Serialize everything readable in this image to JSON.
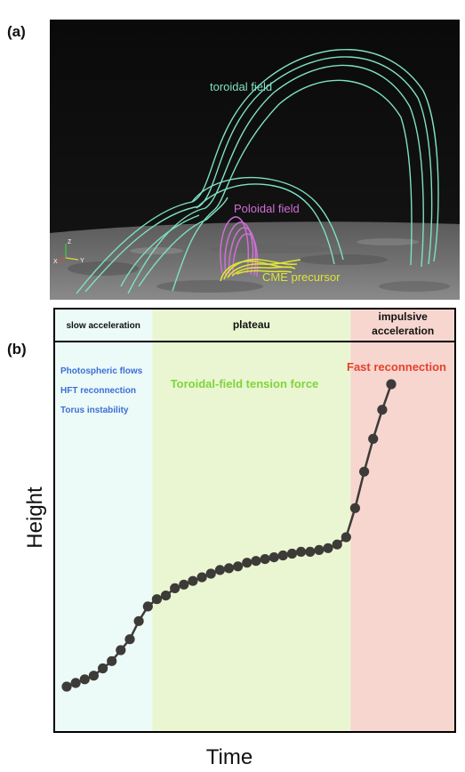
{
  "labels": {
    "panel_a": "(a)",
    "panel_b": "(b)"
  },
  "simulation": {
    "toroidal_label": "toroidal field",
    "poloidal_label": "Poloidal field",
    "cme_label": "CME precursor",
    "axes": {
      "z": "Z",
      "x": "X",
      "y": "Y"
    },
    "colors": {
      "toroidal": "#7fe0c3",
      "poloidal": "#cf6fd6",
      "cme": "#dde33a",
      "background": "#0b0b0b"
    }
  },
  "diagram": {
    "phases": [
      {
        "label": "slow acceleration",
        "color": "#ecfaf8"
      },
      {
        "label": "plateau",
        "color": "#eaf6d2"
      },
      {
        "label": "impulsive\nacceleration",
        "color": "#f6d6cf"
      }
    ],
    "mechanisms": {
      "slow": [
        "Photospheric flows",
        "HFT reconnection",
        "Torus instability"
      ],
      "plateau": "Toroidal-field tension force",
      "impulsive": "Fast reconnection"
    },
    "mechanism_colors": {
      "slow": "#3c6fd6",
      "plateau": "#7fd43a",
      "impulsive": "#e8402a"
    },
    "xlabel": "Time",
    "ylabel": "Height"
  },
  "chart_data": {
    "type": "line",
    "xlabel": "Time",
    "ylabel": "Height",
    "marker_color": "#3d3b38",
    "x": [
      1,
      2,
      3,
      4,
      5,
      6,
      7,
      8,
      9,
      10,
      11,
      12,
      13,
      14,
      15,
      16,
      17,
      18,
      19,
      20,
      21,
      22,
      23,
      24,
      25,
      26,
      27,
      28,
      29,
      30,
      31,
      32,
      33,
      34,
      35,
      36,
      37
    ],
    "y": [
      0.03,
      0.04,
      0.05,
      0.06,
      0.08,
      0.1,
      0.13,
      0.16,
      0.21,
      0.25,
      0.27,
      0.28,
      0.3,
      0.31,
      0.32,
      0.33,
      0.34,
      0.35,
      0.355,
      0.36,
      0.37,
      0.375,
      0.38,
      0.385,
      0.39,
      0.395,
      0.4,
      0.4,
      0.405,
      0.41,
      0.42,
      0.44,
      0.52,
      0.62,
      0.71,
      0.79,
      0.86
    ],
    "phase_boundaries": [
      10.5,
      32.5
    ]
  }
}
